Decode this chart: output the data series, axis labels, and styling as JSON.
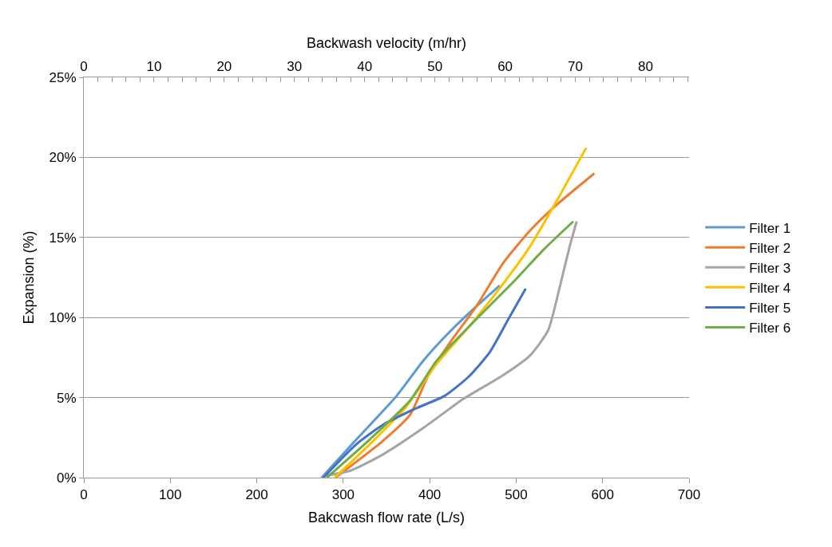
{
  "chart_data": {
    "type": "line",
    "xlabel": "Bakcwash flow rate (L/s)",
    "ylabel": "Expansion (%)",
    "x2label": "Backwash velocity (m/hr)",
    "xlim": [
      0,
      700
    ],
    "xticks": [
      0,
      100,
      200,
      300,
      400,
      500,
      600,
      700
    ],
    "x2lim": [
      0,
      86.2
    ],
    "x2ticks": [
      0,
      {
        "value": 2,
        "label": null
      },
      {
        "value": 4,
        "label": null
      },
      {
        "value": 6,
        "label": null
      },
      {
        "value": 8,
        "label": null
      },
      10,
      {
        "value": 12,
        "label": null
      },
      {
        "value": 14,
        "label": null
      },
      {
        "value": 16,
        "label": null
      },
      {
        "value": 18,
        "label": null
      },
      20,
      {
        "value": 22,
        "label": null
      },
      {
        "value": 24,
        "label": null
      },
      {
        "value": 26,
        "label": null
      },
      {
        "value": 28,
        "label": null
      },
      30,
      {
        "value": 32,
        "label": null
      },
      {
        "value": 34,
        "label": null
      },
      {
        "value": 36,
        "label": null
      },
      {
        "value": 38,
        "label": null
      },
      40,
      {
        "value": 42,
        "label": null
      },
      {
        "value": 44,
        "label": null
      },
      {
        "value": 46,
        "label": null
      },
      {
        "value": 48,
        "label": null
      },
      50,
      {
        "value": 52,
        "label": null
      },
      {
        "value": 54,
        "label": null
      },
      {
        "value": 56,
        "label": null
      },
      {
        "value": 58,
        "label": null
      },
      60,
      {
        "value": 62,
        "label": null
      },
      {
        "value": 64,
        "label": null
      },
      {
        "value": 66,
        "label": null
      },
      {
        "value": 68,
        "label": null
      },
      70,
      {
        "value": 72,
        "label": null
      },
      {
        "value": 74,
        "label": null
      },
      {
        "value": 76,
        "label": null
      },
      {
        "value": 78,
        "label": null
      },
      80,
      {
        "value": 82,
        "label": null
      },
      {
        "value": 84,
        "label": null
      },
      {
        "value": 86,
        "label": null
      }
    ],
    "ylim": [
      0,
      25
    ],
    "yticks": [
      {
        "value": 0,
        "label": "0%"
      },
      {
        "value": 5,
        "label": "5%"
      },
      {
        "value": 10,
        "label": "10%"
      },
      {
        "value": 15,
        "label": "15%"
      },
      {
        "value": 20,
        "label": "20%"
      },
      {
        "value": 25,
        "label": "25%"
      }
    ],
    "grid": "y",
    "legend": "right",
    "marker": "none",
    "line_style": "solid",
    "series": [
      {
        "name": "Filter 1",
        "color": "#5b9bd5",
        "x": [
          275,
          315.5,
          361.7,
          392.5,
          423,
          454,
          481
        ],
        "values": [
          0,
          2.4,
          5.1,
          7.3,
          9.1,
          10.7,
          12.0
        ]
      },
      {
        "name": "Filter 2",
        "color": "#ed7d31",
        "x": [
          291,
          346,
          377,
          398.6,
          423,
          454,
          485,
          515.6,
          546,
          590.4
        ],
        "values": [
          0,
          2.3,
          3.9,
          6.4,
          8.4,
          10.7,
          13.4,
          15.4,
          17.0,
          19.0
        ]
      },
      {
        "name": "Filter 3",
        "color": "#a5a5a5",
        "x": [
          277,
          309,
          346,
          392.5,
          438.6,
          485,
          515.6,
          537,
          549.5,
          561.7,
          570
        ],
        "values": [
          0.1,
          0.45,
          1.45,
          3.1,
          4.9,
          6.4,
          7.6,
          9.2,
          11.7,
          14.4,
          16.0
        ]
      },
      {
        "name": "Filter 4",
        "color": "#ffc000",
        "x": [
          290,
          331,
          371,
          408,
          445,
          482,
          515.6,
          546,
          581
        ],
        "values": [
          0,
          2.1,
          4.3,
          7.1,
          9.4,
          11.9,
          14.4,
          17.2,
          20.6
        ]
      },
      {
        "name": "Filter 5",
        "color": "#4472c4",
        "x": [
          277,
          315.5,
          346,
          383,
          417,
          445,
          469,
          491,
          511
        ],
        "values": [
          0,
          2.1,
          3.3,
          4.3,
          5.1,
          6.3,
          7.8,
          9.9,
          11.8
        ]
      },
      {
        "name": "Filter 6",
        "color": "#70ad47",
        "x": [
          281,
          331,
          377,
          408,
          454,
          500,
          531,
          566
        ],
        "values": [
          0,
          2.4,
          4.8,
          7.3,
          9.9,
          12.4,
          14.2,
          16.0
        ]
      }
    ]
  }
}
